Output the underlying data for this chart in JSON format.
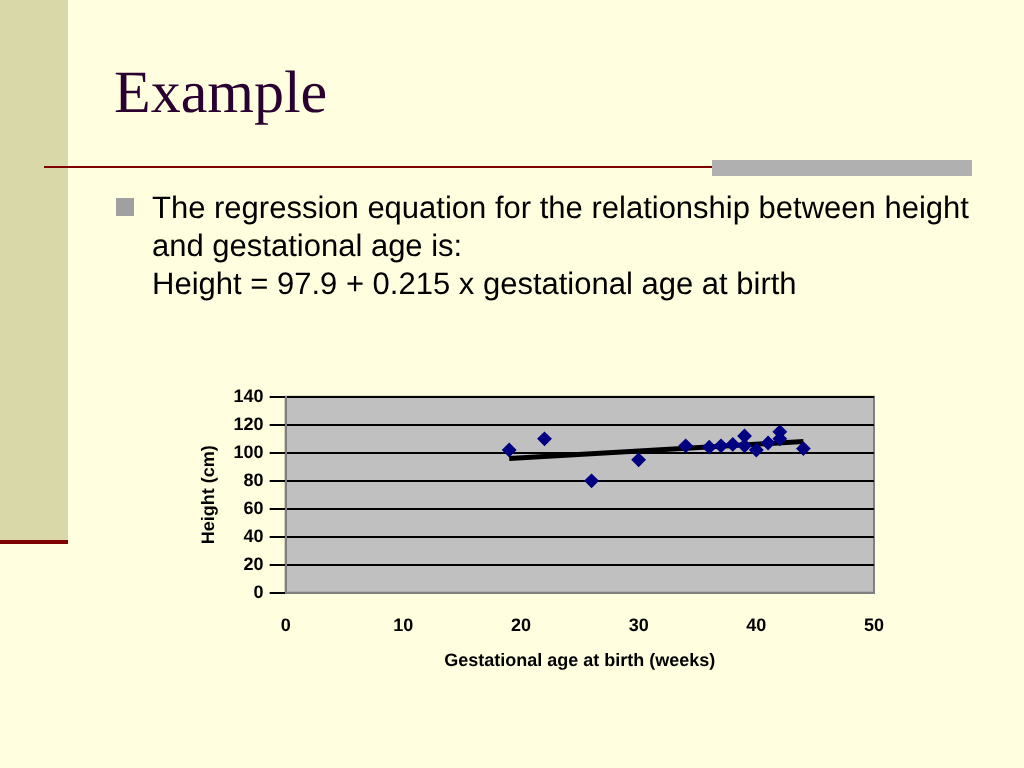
{
  "chart_data": {
    "type": "scatter",
    "title": "Example",
    "annotations": [
      "The regression equation for the relationship between height and gestational age is:",
      "Height = 97.9 + 0.215 x gestational age at birth"
    ],
    "xlabel": "Gestational age at birth (weeks)",
    "ylabel": "Height (cm)",
    "xlim": [
      0,
      50
    ],
    "xticks": [
      0,
      10,
      20,
      30,
      40,
      50
    ],
    "ylim": [
      0,
      140
    ],
    "yticks": [
      0,
      20,
      40,
      60,
      80,
      100,
      120,
      140
    ],
    "grid": "y",
    "legend": false,
    "series": [
      {
        "color": "#000080",
        "marker": "diamond",
        "x": [
          19,
          22,
          26,
          30,
          34,
          36,
          37,
          38,
          39,
          39,
          40,
          41,
          42,
          42,
          44
        ],
        "values": [
          102,
          110,
          80,
          95,
          105,
          104,
          105,
          106,
          112,
          105,
          102,
          107,
          115,
          110,
          103
        ]
      },
      {
        "type": "line",
        "color": "#000000",
        "marker": "none",
        "x": [
          19,
          44
        ],
        "values": [
          96,
          108
        ]
      }
    ]
  }
}
